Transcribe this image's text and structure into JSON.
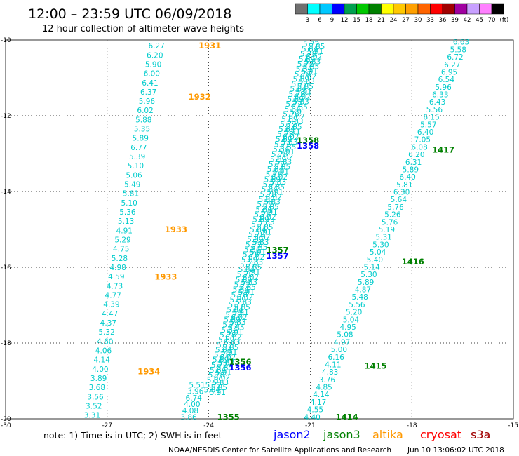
{
  "title": "12:00 – 23:59 UTC 06/09/2018",
  "subtitle": "12 hour collection of altimeter wave heights",
  "colorbar": {
    "labels": [
      "3",
      "6",
      "9",
      "12",
      "15",
      "18",
      "21",
      "24",
      "27",
      "30",
      "33",
      "36",
      "39",
      "42",
      "45",
      "70"
    ],
    "unit": "(ft)",
    "colors": [
      "#707070",
      "#00ffff",
      "#00c8ff",
      "#0000ff",
      "#00a050",
      "#00c800",
      "#008000",
      "#ffff00",
      "#ffc800",
      "#ffa000",
      "#ff6400",
      "#ff0000",
      "#a00000",
      "#a000a0",
      "#c8a0ff",
      "#ff80ff",
      "#000000"
    ]
  },
  "footer": {
    "note": "note: 1) Time is in UTC; 2) SWH is in feet",
    "satellites": [
      {
        "name": "jason2",
        "color": "#0000ff"
      },
      {
        "name": "jason3",
        "color": "#008000"
      },
      {
        "name": "altika",
        "color": "#ff9900"
      },
      {
        "name": "cryosat",
        "color": "#ff0000"
      },
      {
        "name": "s3a",
        "color": "#a00000"
      }
    ],
    "credit": "NOAA/NESDIS Center for Satellite Applications and Research",
    "timestamp": "Jun 10 13:06:02 UTC 2018"
  },
  "chart_data": {
    "type": "scatter",
    "x_ticks": [
      -30,
      -27,
      -24,
      -21,
      -18,
      -15
    ],
    "y_ticks": [
      -10,
      -12,
      -14,
      -16,
      -18,
      -20
    ],
    "xlim": [
      -30,
      -15
    ],
    "ylim": [
      -20,
      -10
    ],
    "grid": true,
    "value_color": "#00cccc",
    "tracks": [
      {
        "name": "left",
        "start": [
          -25.3,
          -10.15
        ],
        "end": [
          -27.2,
          -19.9
        ],
        "values": [
          "6.27",
          "6.20",
          "5.90",
          "6.00",
          "6.41",
          "6.37",
          "5.96",
          "6.02",
          "5.88",
          "5.35",
          "5.89",
          "6.77",
          "5.39",
          "5.10",
          "5.06",
          "5.49",
          "5.81",
          "5.10",
          "5.36",
          "5.13",
          "4.91",
          "5.29",
          "4.75",
          "5.28",
          "4.98",
          "4.59",
          "4.73",
          "4.77",
          "4.39",
          "4.47",
          "4.37",
          "5.32",
          "4.60",
          "4.06",
          "4.14",
          "4.00",
          "3.89",
          "3.68",
          "3.56",
          "3.52",
          "3.31"
        ],
        "times": [
          {
            "label": "1931",
            "x": -24.3,
            "y": -10.15,
            "color": "#ff9900"
          },
          {
            "label": "1932",
            "x": -24.6,
            "y": -11.5,
            "color": "#ff9900"
          },
          {
            "label": "1933",
            "x": -25.3,
            "y": -15.0,
            "color": "#ff9900"
          },
          {
            "label": "1933",
            "x": -25.6,
            "y": -16.25,
            "color": "#ff9900"
          },
          {
            "label": "1934",
            "x": -26.1,
            "y": -18.75,
            "color": "#ff9900"
          }
        ]
      },
      {
        "name": "center-dense",
        "start": [
          -21.05,
          -10.1
        ],
        "end": [
          -24.0,
          -19.3
        ],
        "count": 140,
        "times": [
          {
            "label": "1358",
            "x": -21.4,
            "y": -12.65,
            "color": "#008000"
          },
          {
            "label": "1358",
            "x": -21.4,
            "y": -12.8,
            "color": "#0000ff"
          },
          {
            "label": "1357",
            "x": -22.3,
            "y": -15.55,
            "color": "#008000"
          },
          {
            "label": "1357",
            "x": -22.3,
            "y": -15.7,
            "color": "#0000ff"
          },
          {
            "label": "1356",
            "x": -23.4,
            "y": -18.5,
            "color": "#008000"
          },
          {
            "label": "1356",
            "x": -23.4,
            "y": -18.65,
            "color": "#0000ff"
          }
        ]
      },
      {
        "name": "bottom-center",
        "start": [
          -24.1,
          -19.1
        ],
        "end": [
          -24.35,
          -19.95
        ],
        "values": [
          "5.51",
          "3.96",
          "6.74",
          "4.00",
          "4.08",
          "3.86"
        ],
        "times": [
          {
            "label": "1355",
            "x": -23.75,
            "y": -19.95,
            "color": "#008000"
          }
        ]
      },
      {
        "name": "right",
        "start": [
          -16.3,
          -10.05
        ],
        "end": [
          -20.7,
          -19.95
        ],
        "values": [
          "6.63",
          "5.58",
          "6.72",
          "6.27",
          "6.95",
          "6.54",
          "5.96",
          "6.33",
          "6.43",
          "5.56",
          "6.15",
          "5.57",
          "6.40",
          "7.05",
          "6.08",
          "6.20",
          "6.31",
          "5.89",
          "6.40",
          "5.81",
          "6.30",
          "5.64",
          "5.76",
          "5.26",
          "5.76",
          "5.19",
          "5.31",
          "5.30",
          "5.04",
          "5.40",
          "5.14",
          "5.30",
          "5.89",
          "4.87",
          "5.48",
          "5.56",
          "5.20",
          "5.04",
          "4.95",
          "5.08",
          "4.97",
          "5.00",
          "6.16",
          "4.11",
          "4.83",
          "3.76",
          "4.85",
          "4.14",
          "4.17",
          "4.55",
          "4.40"
        ],
        "times": [
          {
            "label": "1417",
            "x": -17.4,
            "y": -12.9,
            "color": "#008000"
          },
          {
            "label": "1416",
            "x": -18.3,
            "y": -15.85,
            "color": "#008000"
          },
          {
            "label": "1415",
            "x": -19.4,
            "y": -18.6,
            "color": "#008000"
          },
          {
            "label": "1414",
            "x": -20.25,
            "y": -19.95,
            "color": "#008000"
          }
        ]
      }
    ]
  }
}
